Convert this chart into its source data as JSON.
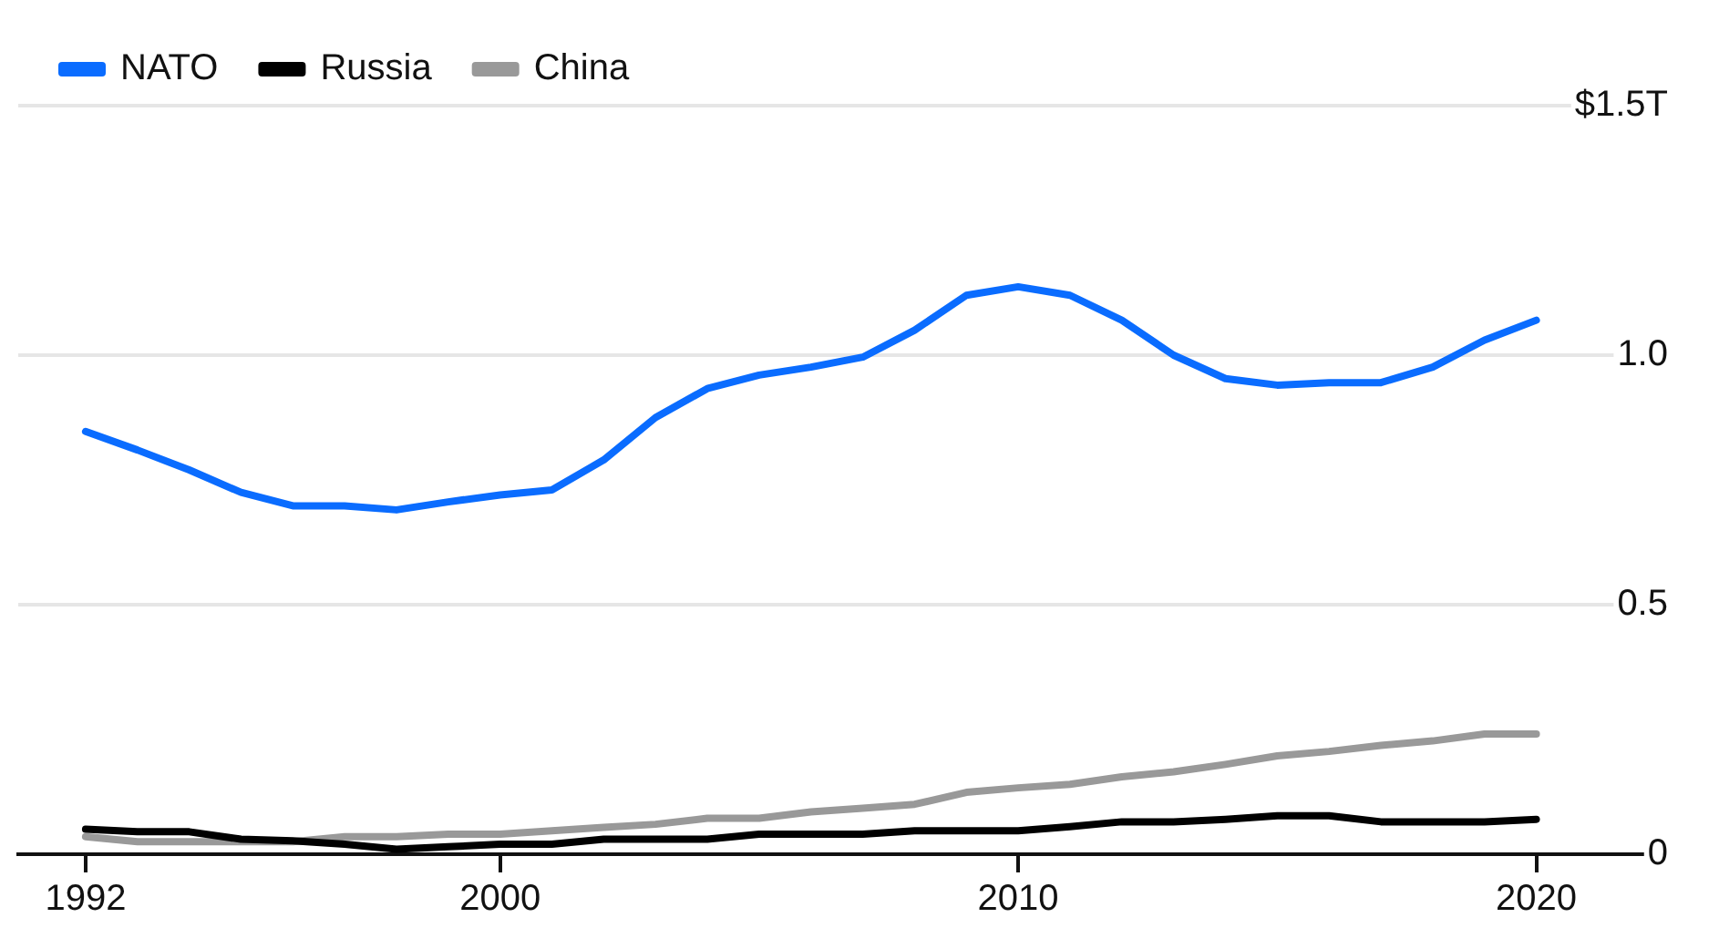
{
  "chart_data": {
    "type": "line",
    "x": [
      1992,
      1993,
      1994,
      1995,
      1996,
      1997,
      1998,
      1999,
      2000,
      2001,
      2002,
      2003,
      2004,
      2005,
      2006,
      2007,
      2008,
      2009,
      2010,
      2011,
      2012,
      2013,
      2014,
      2015,
      2016,
      2017,
      2018,
      2019,
      2020
    ],
    "series": [
      {
        "name": "NATO",
        "color": "#0a6cff",
        "values": [
          0.847,
          0.81,
          0.77,
          0.725,
          0.698,
          0.698,
          0.69,
          0.706,
          0.72,
          0.73,
          0.79,
          0.875,
          0.933,
          0.96,
          0.976,
          0.996,
          1.05,
          1.12,
          1.137,
          1.12,
          1.07,
          1.0,
          0.953,
          0.94,
          0.945,
          0.945,
          0.976,
          1.03,
          1.07
        ]
      },
      {
        "name": "Russia",
        "color": "#000000",
        "values": [
          0.05,
          0.045,
          0.045,
          0.03,
          0.027,
          0.02,
          0.01,
          0.015,
          0.02,
          0.02,
          0.03,
          0.03,
          0.03,
          0.04,
          0.04,
          0.04,
          0.047,
          0.047,
          0.047,
          0.055,
          0.065,
          0.065,
          0.07,
          0.077,
          0.077,
          0.065,
          0.065,
          0.065,
          0.07
        ]
      },
      {
        "name": "China",
        "color": "#999999",
        "values": [
          0.035,
          0.025,
          0.025,
          0.025,
          0.025,
          0.035,
          0.035,
          0.04,
          0.04,
          0.047,
          0.054,
          0.06,
          0.072,
          0.072,
          0.085,
          0.092,
          0.1,
          0.124,
          0.133,
          0.14,
          0.155,
          0.165,
          0.18,
          0.197,
          0.206,
          0.218,
          0.227,
          0.241,
          0.241
        ]
      }
    ],
    "xlim": [
      1990.7,
      2022.4
    ],
    "xticks": [
      1992,
      2000,
      2010,
      2020
    ],
    "ylim": [
      0,
      1.5
    ],
    "yticks": [
      {
        "value": 0,
        "label": "0"
      },
      {
        "value": 0.5,
        "label": "0.5"
      },
      {
        "value": 1,
        "label": "1.0"
      },
      {
        "value": 1.5,
        "label": "$1.5T"
      }
    ],
    "grid": "y",
    "legend": "top left",
    "marker": "none",
    "line_style": "solid"
  }
}
